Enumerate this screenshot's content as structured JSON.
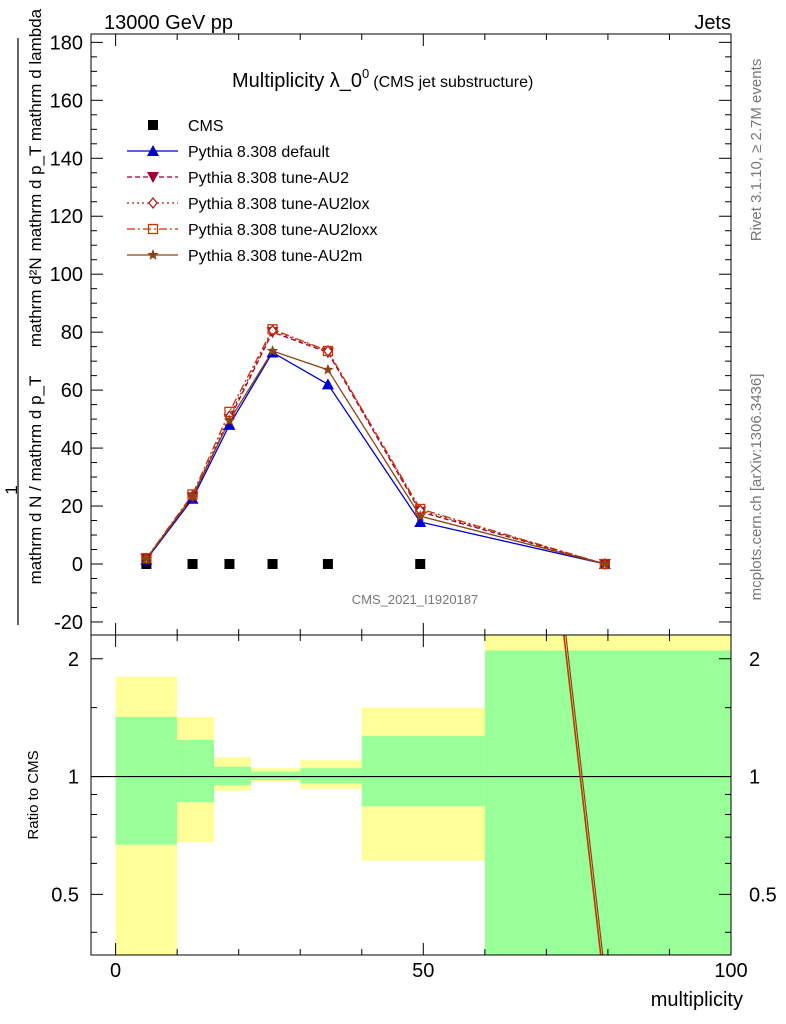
{
  "header": {
    "energy_label": "13000 GeV pp",
    "process_label": "Jets"
  },
  "side_labels": {
    "rivet": "Rivet 3.1.10, ≥ 2.7M events",
    "mcplots": "mcplots.cern.ch [arXiv:1306.3436]"
  },
  "colors": {
    "cms": "#000000",
    "default": "#0000cc",
    "au2": "#990033",
    "au2lox": "#b31a1a",
    "au2loxx": "#cc3300",
    "au2m": "#8b4513",
    "band_inner": "#99ff99",
    "band_outer": "#ffff99"
  },
  "chart_data": [
    {
      "type": "line",
      "title_main": "Multiplicity λ_0",
      "title_sup": "0",
      "title_note": "(CMS jet substructure)",
      "ylabel_top": "mathrm d²N",
      "ylabel_mid": "mathrm d p_T mathrm d lambda",
      "ylabel_one": "1",
      "ylabel_bot": "mathrm d N / mathrm d p_T",
      "watermark": "CMS_2021_I1920187",
      "xlim": [
        -4,
        100
      ],
      "ylim": [
        -22,
        182
      ],
      "yticks": [
        -20,
        0,
        20,
        40,
        60,
        80,
        100,
        120,
        140,
        160,
        180
      ],
      "x": [
        5,
        12.5,
        18.5,
        25.5,
        34.5,
        49.5,
        79.5
      ],
      "series": [
        {
          "name": "CMS",
          "key": "cms",
          "values": [
            0,
            0,
            0,
            0,
            0,
            0,
            null
          ]
        },
        {
          "name": "Pythia 8.308 default",
          "key": "default",
          "values": [
            1.5,
            22.5,
            48,
            73,
            62,
            14.5,
            0
          ]
        },
        {
          "name": "Pythia 8.308 tune-AU2",
          "key": "au2",
          "values": [
            1.8,
            23,
            50,
            80,
            73,
            18,
            0
          ]
        },
        {
          "name": "Pythia 8.308 tune-AU2lox",
          "key": "au2lox",
          "values": [
            1.9,
            23.5,
            51,
            80.5,
            73.5,
            18.5,
            0
          ]
        },
        {
          "name": "Pythia 8.308 tune-AU2loxx",
          "key": "au2loxx",
          "values": [
            2,
            24,
            52.5,
            81,
            73.5,
            19,
            0
          ]
        },
        {
          "name": "Pythia 8.308 tune-AU2m",
          "key": "au2m",
          "values": [
            1.8,
            23.5,
            49.5,
            73.5,
            67,
            16.5,
            0
          ]
        }
      ]
    },
    {
      "type": "area",
      "ylabel": "Ratio to CMS",
      "xlabel": "multiplicity",
      "xlim": [
        -4,
        100
      ],
      "xticks": [
        0,
        50,
        100
      ],
      "ylim": [
        0.35,
        2.3
      ],
      "yticks": [
        0.5,
        1,
        2
      ],
      "ytick_labels": [
        "0.5",
        "1",
        "2"
      ],
      "reference": 1,
      "bins": [
        {
          "lo": 0,
          "hi": 10,
          "inner": [
            0.67,
            1.42
          ],
          "outer": [
            0.35,
            1.8
          ]
        },
        {
          "lo": 10,
          "hi": 16,
          "inner": [
            0.86,
            1.24
          ],
          "outer": [
            0.68,
            1.42
          ]
        },
        {
          "lo": 16,
          "hi": 22,
          "inner": [
            0.95,
            1.06
          ],
          "outer": [
            0.92,
            1.12
          ]
        },
        {
          "lo": 22,
          "hi": 30,
          "inner": [
            0.98,
            1.03
          ],
          "outer": [
            0.97,
            1.05
          ]
        },
        {
          "lo": 30,
          "hi": 40,
          "inner": [
            0.96,
            1.05
          ],
          "outer": [
            0.93,
            1.1
          ]
        },
        {
          "lo": 40,
          "hi": 60,
          "inner": [
            0.84,
            1.27
          ],
          "outer": [
            0.61,
            1.5
          ]
        },
        {
          "lo": 60,
          "hi": 100,
          "inner": [
            0.35,
            2.1
          ],
          "outer": [
            0.35,
            2.3
          ]
        }
      ],
      "ratio_line": {
        "x": [
          73,
          79
        ],
        "y": [
          2.3,
          0.35
        ]
      }
    }
  ]
}
